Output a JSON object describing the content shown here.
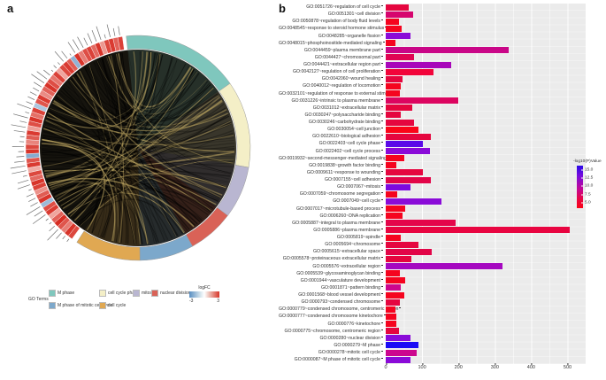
{
  "figure": {
    "panel_a_label": "a",
    "panel_b_label": "b"
  },
  "panel_a": {
    "legend": {
      "title": "GO Terms",
      "items": [
        {
          "label": "M phase",
          "color": "#7fc7bd"
        },
        {
          "label": "M phase of mitotic cell cycle",
          "color": "#7ca8cb"
        },
        {
          "label": "cell cycle phase",
          "color": "#f4efc7"
        },
        {
          "label": "cell cycle",
          "color": "#e0a852"
        },
        {
          "label": "mitosis",
          "color": "#b9b6d1"
        },
        {
          "label": "nuclear division",
          "color": "#d96257"
        }
      ],
      "logfc": {
        "title": "logFC",
        "min": "-3",
        "max": "3",
        "colors": [
          "#5a8fc2",
          "#ffffff",
          "#d7362a"
        ]
      }
    },
    "circos": {
      "arcs": [
        {
          "label": "M phase",
          "color": "#7fc7bd",
          "start": -6,
          "end": 55
        },
        {
          "label": "cell cycle phase",
          "color": "#f4efc7",
          "start": 55,
          "end": 100
        },
        {
          "label": "mitosis",
          "color": "#b9b6d1",
          "start": 100,
          "end": 127
        },
        {
          "label": "nuclear division",
          "color": "#d96257",
          "start": 127,
          "end": 151
        },
        {
          "label": "M phase of mitotic cell cycle",
          "color": "#7ca8cb",
          "start": 151,
          "end": 179
        },
        {
          "label": "cell cycle",
          "color": "#e0a852",
          "start": 179,
          "end": 213
        }
      ],
      "gene_logfc": [
        2.6,
        2.9,
        1.8,
        2.4,
        3.0,
        2.2,
        1.2,
        2.8,
        2.5,
        -1.8,
        2.9,
        2.3,
        1.5,
        2.7,
        2.9,
        2.1,
        2.6,
        1.1,
        2.8,
        2.4,
        -2.2,
        2.9,
        2.6,
        1.7,
        2.3,
        2.8,
        1.3,
        2.5,
        2.9,
        2.0,
        2.7,
        -1.5,
        2.4,
        2.8,
        1.6,
        2.2,
        2.9,
        2.5,
        1.9,
        2.7,
        1.2,
        2.6,
        2.8,
        2.3,
        -2.0,
        2.9,
        1.8,
        2.5,
        2.7,
        2.1,
        2.9,
        1.4,
        2.6,
        2.8,
        2.2,
        2.7
      ]
    }
  },
  "chart_data": {
    "type": "bar",
    "orientation": "horizontal",
    "title": "",
    "xlabel": "",
    "ylabel": "",
    "xlim": [
      0,
      550
    ],
    "xticks": [
      "0",
      "100",
      "200",
      "300",
      "400",
      "500"
    ],
    "grid": true,
    "legend": {
      "title": "-log10(P)Value",
      "position": "right",
      "ticks": [
        "15.0",
        "12.5",
        "10.0",
        "7.5",
        "5.0"
      ],
      "gradient_top_to_bottom": [
        "#2a09e8",
        "#7a0bdb",
        "#c40795",
        "#e80546",
        "#fb0416"
      ]
    },
    "categories": [
      "GO:0051726~regulation of cell cycle",
      "GO:0051301~cell division",
      "GO:0050878~regulation of body fluid levels",
      "GO:0048545~response to steroid hormone stimulus",
      "GO:0048285~organelle fission",
      "GO:0048015~phosphoinositide-mediated signaling",
      "GO:0044459~plasma membrane part",
      "GO:0044427~chromosomal part",
      "GO:0044421~extracellular region part",
      "GO:0042127~regulation of cell proliferation",
      "GO:0042060~wound healing",
      "GO:0040012~regulation of locomotion",
      "GO:0032101~regulation of response to external stimulus",
      "GO:0031226~intrinsic to plasma membrane",
      "GO:0031012~extracellular matrix",
      "GO:0030247~polysaccharide binding",
      "GO:0030246~carbohydrate binding",
      "GO:0030054~cell junction",
      "GO:0022610~biological adhesion",
      "GO:0022403~cell cycle phase",
      "GO:0022402~cell cycle process",
      "GO:0019932~second-messenger-mediated signaling",
      "GO:0019838~growth factor binding",
      "GO:0009611~response to wounding",
      "GO:0007155~cell adhesion",
      "GO:0007067~mitosis",
      "GO:0007059~chromosome segregation",
      "GO:0007049~cell cycle",
      "GO:0007017~microtubule-based process",
      "GO:0006260~DNA replication",
      "GO:0005887~integral to plasma membrane",
      "GO:0005886~plasma membrane",
      "GO:0005819~spindle",
      "GO:0005694~chromosome",
      "GO:0005615~extracellular space",
      "GO:0005578~proteinaceous extracellular matrix",
      "GO:0005576~extracellular region",
      "GO:0005539~glycosaminoglycan binding",
      "GO:0001944~vasculature development",
      "GO:0001871~pattern binding",
      "GO:0001568~blood vessel development",
      "GO:0000793~condensed chromosome",
      "GO:0000779~condensed chromosome, centromeric region",
      "GO:0000777~condensed chromosome kinetochore",
      "GO:0000776~kinetochore",
      "GO:0000775~chromosome, centromeric region",
      "GO:0000280~nuclear division",
      "GO:0000279~M phase",
      "GO:0000278~mitotic cell cycle",
      "GO:0000087~M phase of mitotic cell cycle"
    ],
    "values": [
      63,
      75,
      37,
      43,
      69,
      27,
      337,
      78,
      180,
      132,
      46,
      42,
      39,
      199,
      72,
      42,
      77,
      89,
      124,
      102,
      121,
      52,
      30,
      102,
      124,
      68,
      31,
      154,
      54,
      46,
      193,
      505,
      41,
      89,
      126,
      71,
      322,
      39,
      54,
      42,
      52,
      39,
      26,
      28,
      28,
      36,
      69,
      91,
      85,
      69
    ],
    "colors": [
      "#e5063f",
      "#d6056e",
      "#f5041f",
      "#f5041f",
      "#8a0bd8",
      "#f5041f",
      "#c90687",
      "#e00553",
      "#a807ba",
      "#f2043a",
      "#e5063f",
      "#f5041f",
      "#f5041f",
      "#dc0560",
      "#e5063f",
      "#e5063f",
      "#e5063f",
      "#fb0418",
      "#e5063f",
      "#5a0ae8",
      "#8a0bd8",
      "#f5041f",
      "#f5041f",
      "#e5063f",
      "#e20548",
      "#7c0adf",
      "#f5041f",
      "#8a0bd8",
      "#f5041f",
      "#f5041f",
      "#e4054a",
      "#e80440",
      "#f5041f",
      "#e5063f",
      "#e20548",
      "#e5063f",
      "#a508c0",
      "#f5041f",
      "#f5041f",
      "#cc068e",
      "#f5041f",
      "#e5063f",
      "#f5041f",
      "#f5041f",
      "#f5041f",
      "#e5063f",
      "#8a0bd8",
      "#1b0bf5",
      "#cc068e",
      "#8a0bd8"
    ]
  }
}
